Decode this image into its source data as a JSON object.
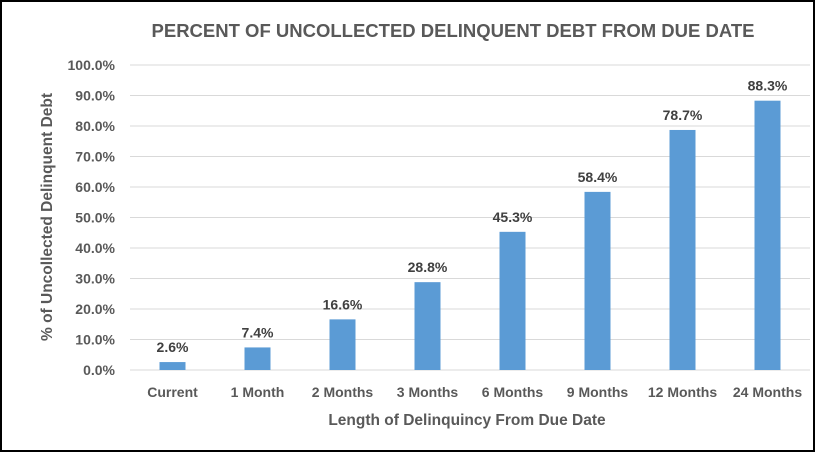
{
  "chart_data": {
    "type": "bar",
    "title": "PERCENT OF UNCOLLECTED DELINQUENT DEBT FROM DUE DATE",
    "xlabel": "Length of Delinquincy From Due Date",
    "ylabel": "% of Uncollected Delinquent Debt",
    "categories": [
      "Current",
      "1 Month",
      "2 Months",
      "3 Months",
      "6 Months",
      "9 Months",
      "12 Months",
      "24 Months"
    ],
    "values": [
      2.6,
      7.4,
      16.6,
      28.8,
      45.3,
      58.4,
      78.7,
      88.3
    ],
    "data_labels": [
      "2.6%",
      "7.4%",
      "16.6%",
      "28.8%",
      "45.3%",
      "58.4%",
      "78.7%",
      "88.3%"
    ],
    "yticks": [
      "0.0%",
      "10.0%",
      "20.0%",
      "30.0%",
      "40.0%",
      "50.0%",
      "60.0%",
      "70.0%",
      "80.0%",
      "90.0%",
      "100.0%"
    ],
    "ylim": [
      0,
      100
    ],
    "grid": true,
    "legend": "none",
    "bar_color": "#5B9BD5",
    "grid_color": "#D9D9D9"
  }
}
